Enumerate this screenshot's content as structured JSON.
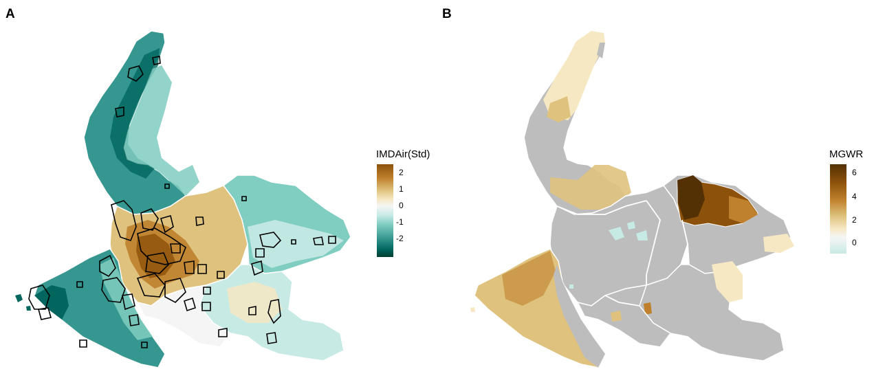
{
  "panels": [
    {
      "label": "A",
      "legend": {
        "title": "IMDAir(Std)",
        "ticks": [
          "2",
          "1",
          "0",
          "-1",
          "-2"
        ],
        "gradient": [
          "#543005",
          "#8c510a",
          "#bf812d",
          "#dfc27d",
          "#f6e8c3",
          "#f5f5f5",
          "#c7eae5",
          "#80cdc1",
          "#35978f",
          "#01665e",
          "#003c30"
        ]
      }
    },
    {
      "label": "B",
      "legend": {
        "title": "MGWR",
        "ticks": [
          "6",
          "4",
          "2",
          "0"
        ],
        "gradient": [
          "#543005",
          "#8c510a",
          "#bf812d",
          "#dfc27d",
          "#f6e8c3",
          "#c7eae5"
        ]
      }
    }
  ],
  "colors": {
    "no_data": "#bdbdbd",
    "boundary": "#ffffff",
    "hotspot_outline": "#000000"
  }
}
